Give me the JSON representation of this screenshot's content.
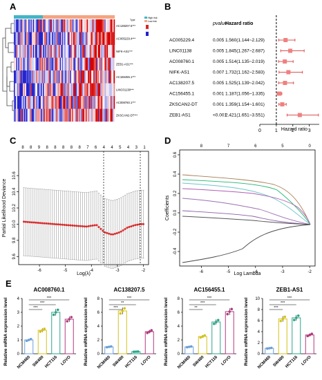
{
  "panels": {
    "A": "A",
    "B": "B",
    "C": "C",
    "D": "D",
    "E": "E"
  },
  "heatmap": {
    "genes": [
      "AC138207.5***",
      "AC005229.4***",
      "NIFK-AS1***",
      "ZEB1-AS1***",
      "AC156455.1***",
      "LINC01138***",
      "AC008760.1***",
      "ZKSCAN2-DT***"
    ],
    "legend": [
      "Type",
      "High risk",
      "Low risk"
    ],
    "colors": {
      "high": "#d62728",
      "low": "#2222cc",
      "mid": "#ffffff",
      "top_bar_a": "#41b6c4",
      "top_bar_b": "#f4a582"
    }
  },
  "forest": {
    "col_pvalue": "pvalue",
    "col_hr": "Hazard ratio",
    "xlabel": "Hazard ratio",
    "ticks": [
      "0",
      "1",
      "2",
      "3"
    ],
    "rows": [
      {
        "gene": "AC005229.4",
        "p": "0.005",
        "hr_text": "1.560(1.144~2.129)"
      },
      {
        "gene": "LINC01138",
        "p": "0.005",
        "hr_text": "1.845(1.267~2.687)"
      },
      {
        "gene": "AC008760.1",
        "p": "0.005",
        "hr_text": "1.514(1.135~2.019)"
      },
      {
        "gene": "NIFK-AS1",
        "p": "0.007",
        "hr_text": "1.732(1.162~2.583)"
      },
      {
        "gene": "AC138207.5",
        "p": "0.005",
        "hr_text": "1.525(1.139~2.042)"
      },
      {
        "gene": "AC156455.1",
        "p": "0.001",
        "hr_text": "1.187(1.056~1.335)"
      },
      {
        "gene": "ZKSCAN2-DT",
        "p": "0.001",
        "hr_text": "1.359(1.154~1.601)"
      },
      {
        "gene": "ZEB1-AS1",
        "p": "<0.001",
        "hr_text": "2.421(1.651~3.551)"
      }
    ]
  },
  "cv": {
    "ylabel": "Partial Likelihood Deviance",
    "xlabel": "Log(λ)",
    "top_ticks": [
      "8",
      "8",
      "9",
      "8",
      "8",
      "8",
      "8",
      "8",
      "7",
      "6",
      "4",
      "4",
      "5",
      "4",
      "3",
      "1"
    ],
    "x_ticks": [
      "-6",
      "-5",
      "-4",
      "-3",
      "-2"
    ],
    "y_ticks": [
      "9.6",
      "9.8",
      "10.0",
      "10.2",
      "10.4",
      "10.6"
    ]
  },
  "lasso": {
    "ylabel": "Coefficients",
    "xlabel": "Log Lambda",
    "top_ticks": [
      "8",
      "7",
      "6",
      "5",
      "0"
    ],
    "x_ticks": [
      "-6",
      "-5",
      "-4",
      "-3",
      "-2"
    ],
    "y_ticks": [
      "-0.4",
      "-0.2",
      "0.0",
      "0.2",
      "0.4",
      "0.6"
    ]
  },
  "bars": {
    "ylabel": "Relative mRNA expression level",
    "groups": [
      "NCM460",
      "SW480",
      "HCT116",
      "LOVO"
    ],
    "sig": "***",
    "sig2": "**",
    "charts": [
      {
        "title": "AC008760.1",
        "yticks": [
          "0",
          "1",
          "2",
          "3",
          "4"
        ],
        "values": [
          1.0,
          1.7,
          3.0,
          2.5
        ]
      },
      {
        "title": "AC138207.5",
        "yticks": [
          "0",
          "2",
          "4",
          "6",
          "8"
        ],
        "values": [
          1.0,
          6.2,
          0.3,
          3.2
        ]
      },
      {
        "title": "AC156455.1",
        "yticks": [
          "0",
          "2",
          "4",
          "6",
          "8"
        ],
        "values": [
          1.0,
          2.5,
          4.6,
          6.1
        ]
      },
      {
        "title": "ZEB1-AS1",
        "yticks": [
          "0",
          "2",
          "4",
          "6",
          "8",
          "10"
        ],
        "values": [
          1.0,
          6.3,
          6.5,
          3.4
        ]
      }
    ]
  },
  "chart_data": [
    {
      "type": "heatmap",
      "rows": [
        "AC138207.5",
        "AC005229.4",
        "NIFK-AS1",
        "ZEB1-AS1",
        "AC156455.1",
        "LINC01138",
        "AC008760.1",
        "ZKSCAN2-DT"
      ]
    },
    {
      "type": "scatter",
      "xlabel": "Hazard ratio",
      "categories": [
        "AC005229.4",
        "LINC01138",
        "AC008760.1",
        "NIFK-AS1",
        "AC138207.5",
        "AC156455.1",
        "ZKSCAN2-DT",
        "ZEB1-AS1"
      ],
      "values": [
        1.56,
        1.845,
        1.514,
        1.732,
        1.525,
        1.187,
        1.359,
        2.421
      ],
      "lower": [
        1.144,
        1.267,
        1.135,
        1.162,
        1.139,
        1.056,
        1.154,
        1.651
      ],
      "upper": [
        2.129,
        2.687,
        2.019,
        2.583,
        2.042,
        1.335,
        1.601,
        3.551
      ],
      "xlim": [
        0,
        3.6
      ]
    },
    {
      "type": "scatter",
      "xlabel": "Log(λ)",
      "ylabel": "Partial Likelihood Deviance",
      "x": [
        -6.6,
        -6.2,
        -5.8,
        -5.4,
        -5.0,
        -4.6,
        -4.2,
        -3.8,
        -3.5,
        -3.2,
        -2.9,
        -2.6,
        -2.3,
        -2.1
      ],
      "y": [
        10.03,
        10.02,
        10.01,
        10.0,
        9.99,
        9.98,
        9.97,
        9.99,
        9.9,
        9.87,
        9.9,
        9.96,
        9.99,
        10.0
      ],
      "xlim": [
        -6.8,
        -1.8
      ],
      "ylim": [
        9.5,
        10.9
      ]
    },
    {
      "type": "line",
      "xlabel": "Log Lambda",
      "ylabel": "Coefficients",
      "xlim": [
        -6.8,
        -1.8
      ],
      "ylim": [
        -0.55,
        0.65
      ]
    },
    {
      "type": "bar",
      "title": "AC008760.1",
      "categories": [
        "NCM460",
        "SW480",
        "HCT116",
        "LOVO"
      ],
      "values": [
        1.0,
        1.7,
        3.0,
        2.5
      ],
      "ylim": [
        0,
        4
      ]
    },
    {
      "type": "bar",
      "title": "AC138207.5",
      "categories": [
        "NCM460",
        "SW480",
        "HCT116",
        "LOVO"
      ],
      "values": [
        1.0,
        6.2,
        0.3,
        3.2
      ],
      "ylim": [
        0,
        8
      ]
    },
    {
      "type": "bar",
      "title": "AC156455.1",
      "categories": [
        "NCM460",
        "SW480",
        "HCT116",
        "LOVO"
      ],
      "values": [
        1.0,
        2.5,
        4.6,
        6.1
      ],
      "ylim": [
        0,
        8
      ]
    },
    {
      "type": "bar",
      "title": "ZEB1-AS1",
      "categories": [
        "NCM460",
        "SW480",
        "HCT116",
        "LOVO"
      ],
      "values": [
        1.0,
        6.3,
        6.5,
        3.4
      ],
      "ylim": [
        0,
        10
      ]
    }
  ]
}
